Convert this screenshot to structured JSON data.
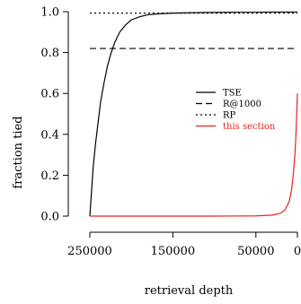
{
  "chart_data": {
    "type": "line",
    "xlabel": "retrieval depth",
    "ylabel": "fraction tied",
    "xlim": [
      250000,
      0
    ],
    "ylim": [
      0,
      1
    ],
    "x_reversed": true,
    "x_ticks": [
      250000,
      150000,
      50000,
      0
    ],
    "x_tick_labels": [
      "250000",
      "150000",
      "50000",
      "0"
    ],
    "y_ticks": [
      0,
      0.2,
      0.4,
      0.6,
      0.8,
      1.0
    ],
    "y_tick_labels": [
      "0.0",
      "0.2",
      "0.4",
      "0.6",
      "0.8",
      "1.0"
    ],
    "legend_position": "center-right",
    "series": [
      {
        "name": "TSE",
        "color": "#000000",
        "style": "solid",
        "x": [
          250000,
          248000,
          246000,
          243000,
          240000,
          237000,
          233000,
          229000,
          225000,
          220000,
          214000,
          207000,
          200000,
          190000,
          180000,
          165000,
          150000,
          125000,
          100000,
          75000,
          50000,
          25000,
          0
        ],
        "y": [
          0.0,
          0.12,
          0.24,
          0.36,
          0.46,
          0.56,
          0.65,
          0.73,
          0.79,
          0.85,
          0.9,
          0.935,
          0.96,
          0.975,
          0.985,
          0.99,
          0.993,
          0.995,
          0.996,
          0.997,
          0.997,
          0.998,
          0.998
        ]
      },
      {
        "name": "R@1000",
        "color": "#000000",
        "style": "dashed",
        "x": [
          250000,
          0
        ],
        "y": [
          0.82,
          0.82
        ]
      },
      {
        "name": "RP",
        "color": "#000000",
        "style": "dotted",
        "x": [
          250000,
          0
        ],
        "y": [
          0.993,
          0.993
        ]
      },
      {
        "name": "this section",
        "color": "#e8231f",
        "style": "solid",
        "x": [
          250000,
          200000,
          150000,
          100000,
          50000,
          30000,
          20000,
          15000,
          10000,
          7000,
          5000,
          3000,
          1500,
          0
        ],
        "y": [
          0.0,
          0.0,
          0.0,
          0.0,
          0.001,
          0.005,
          0.015,
          0.03,
          0.07,
          0.13,
          0.2,
          0.3,
          0.42,
          0.6
        ]
      }
    ]
  }
}
